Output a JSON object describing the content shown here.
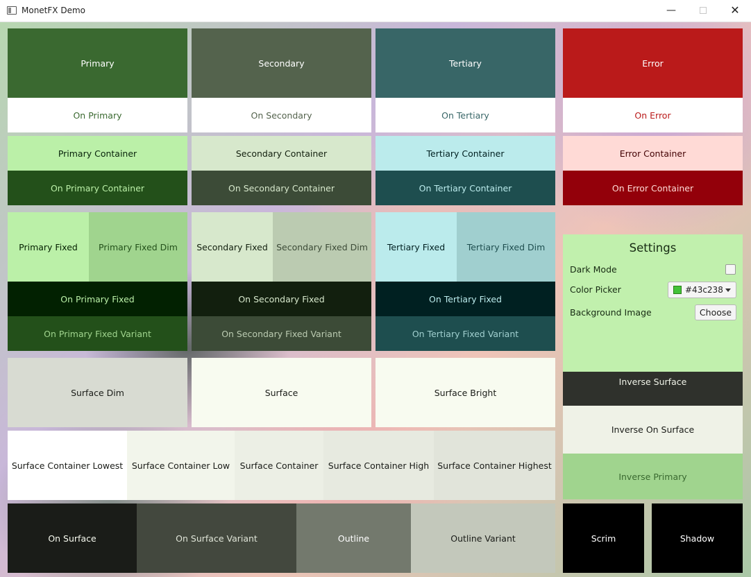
{
  "window": {
    "title": "MonetFX Demo"
  },
  "colors": {
    "primary": "#3a6930",
    "secondary": "#54634d",
    "tertiary": "#386667",
    "error": "#ba1a1a"
  },
  "tiles": [
    {
      "id": "primary",
      "label": "Primary",
      "bg": "#3a6930",
      "fg": "#ffffff"
    },
    {
      "id": "on-primary",
      "label": "On Primary",
      "bg": "#ffffff",
      "fg": "#3a6930"
    },
    {
      "id": "secondary",
      "label": "Secondary",
      "bg": "#54634d",
      "fg": "#ffffff"
    },
    {
      "id": "on-secondary",
      "label": "On Secondary",
      "bg": "#ffffff",
      "fg": "#54634d"
    },
    {
      "id": "tertiary",
      "label": "Tertiary",
      "bg": "#386667",
      "fg": "#ffffff"
    },
    {
      "id": "on-tertiary",
      "label": "On Tertiary",
      "bg": "#ffffff",
      "fg": "#386667"
    },
    {
      "id": "error",
      "label": "Error",
      "bg": "#ba1a1a",
      "fg": "#ffffff"
    },
    {
      "id": "on-error",
      "label": "On Error",
      "bg": "#ffffff",
      "fg": "#ba1a1a"
    },
    {
      "id": "primary-container",
      "label": "Primary Container",
      "bg": "#bbf0a8",
      "fg": "#07220a"
    },
    {
      "id": "on-primary-container",
      "label": "On Primary Container",
      "bg": "#23501a",
      "fg": "#bbf0a8"
    },
    {
      "id": "secondary-container",
      "label": "Secondary Container",
      "bg": "#d7e8cc",
      "fg": "#121f0e"
    },
    {
      "id": "on-secondary-container",
      "label": "On Secondary Container",
      "bg": "#3c4b37",
      "fg": "#d7e8cc"
    },
    {
      "id": "tertiary-container",
      "label": "Tertiary Container",
      "bg": "#bbebec",
      "fg": "#002021"
    },
    {
      "id": "on-tertiary-container",
      "label": "On Tertiary Container",
      "bg": "#1e4e4f",
      "fg": "#bbebec"
    },
    {
      "id": "error-container",
      "label": "Error Container",
      "bg": "#ffdad6",
      "fg": "#410002"
    },
    {
      "id": "on-error-container",
      "label": "On Error Container",
      "bg": "#93000a",
      "fg": "#ffdad6"
    },
    {
      "id": "primary-fixed",
      "label": "Primary Fixed",
      "bg": "#bbf0a8",
      "fg": "#042100"
    },
    {
      "id": "primary-fixed-dim",
      "label": "Primary Fixed Dim",
      "bg": "#a0d48e",
      "fg": "#23501a"
    },
    {
      "id": "on-primary-fixed",
      "label": "On Primary Fixed",
      "bg": "#022101",
      "fg": "#bbf0a8"
    },
    {
      "id": "on-primary-fixed-variant",
      "label": "On Primary Fixed Variant",
      "bg": "#23501a",
      "fg": "#a0d48e"
    },
    {
      "id": "secondary-fixed",
      "label": "Secondary Fixed",
      "bg": "#d7e8cc",
      "fg": "#121f0e"
    },
    {
      "id": "secondary-fixed-dim",
      "label": "Secondary Fixed Dim",
      "bg": "#bbcbb1",
      "fg": "#3c4b37"
    },
    {
      "id": "on-secondary-fixed",
      "label": "On Secondary Fixed",
      "bg": "#121f0e",
      "fg": "#d7e8cc"
    },
    {
      "id": "on-secondary-fixed-variant",
      "label": "On Secondary Fixed Variant",
      "bg": "#3c4b37",
      "fg": "#bbcbb1"
    },
    {
      "id": "tertiary-fixed",
      "label": "Tertiary Fixed",
      "bg": "#bbebec",
      "fg": "#002021"
    },
    {
      "id": "tertiary-fixed-dim",
      "label": "Tertiary Fixed Dim",
      "bg": "#a0cfcf",
      "fg": "#1e4e4f"
    },
    {
      "id": "on-tertiary-fixed",
      "label": "On Tertiary Fixed",
      "bg": "#002021",
      "fg": "#bbebec"
    },
    {
      "id": "on-tertiary-fixed-variant",
      "label": "On Tertiary Fixed Variant",
      "bg": "#1e4e4f",
      "fg": "#a0cfcf"
    },
    {
      "id": "surface-dim",
      "label": "Surface Dim",
      "bg": "#d8dbd2",
      "fg": "#1a1c18"
    },
    {
      "id": "surface",
      "label": "Surface",
      "bg": "#f8fbf0",
      "fg": "#1a1c18"
    },
    {
      "id": "surface-bright",
      "label": "Surface Bright",
      "bg": "#f8fbf0",
      "fg": "#1a1c18"
    },
    {
      "id": "inverse-surface",
      "label": "Inverse Surface",
      "bg": "#2f312c",
      "fg": "#eff2e7"
    },
    {
      "id": "inverse-on-surface",
      "label": "Inverse On Surface",
      "bg": "#eff2e7",
      "fg": "#1a1c18"
    },
    {
      "id": "inverse-primary",
      "label": "Inverse Primary",
      "bg": "#a0d48e",
      "fg": "#3a6930"
    },
    {
      "id": "surface-container-lowest",
      "label": "Surface Container Lowest",
      "bg": "#ffffff",
      "fg": "#1a1c18"
    },
    {
      "id": "surface-container-low",
      "label": "Surface Container Low",
      "bg": "#f2f5eb",
      "fg": "#1a1c18"
    },
    {
      "id": "surface-container",
      "label": "Surface Container",
      "bg": "#ecefe5",
      "fg": "#1a1c18"
    },
    {
      "id": "surface-container-high",
      "label": "Surface Container High",
      "bg": "#e7eae0",
      "fg": "#1a1c18"
    },
    {
      "id": "surface-container-highest",
      "label": "Surface Container Highest",
      "bg": "#e1e4da",
      "fg": "#1a1c18"
    },
    {
      "id": "on-surface",
      "label": "On Surface",
      "bg": "#1a1c18",
      "fg": "#f8fbf0"
    },
    {
      "id": "on-surface-variant",
      "label": "On Surface Variant",
      "bg": "#43483e",
      "fg": "#dfe4d7"
    },
    {
      "id": "outline",
      "label": "Outline",
      "bg": "#73796d",
      "fg": "#ffffff"
    },
    {
      "id": "outline-variant",
      "label": "Outline Variant",
      "bg": "#c3c8bb",
      "fg": "#1a1c18"
    },
    {
      "id": "scrim",
      "label": "Scrim",
      "bg": "#000000",
      "fg": "#ffffff"
    },
    {
      "id": "shadow",
      "label": "Shadow",
      "bg": "#000000",
      "fg": "#ffffff"
    }
  ],
  "settings": {
    "title": "Settings",
    "dark_mode_label": "Dark Mode",
    "dark_mode_checked": false,
    "color_picker_label": "Color Picker",
    "color_value": "#43c238",
    "color_swatch": "#43c238",
    "background_image_label": "Background Image",
    "choose_label": "Choose"
  }
}
